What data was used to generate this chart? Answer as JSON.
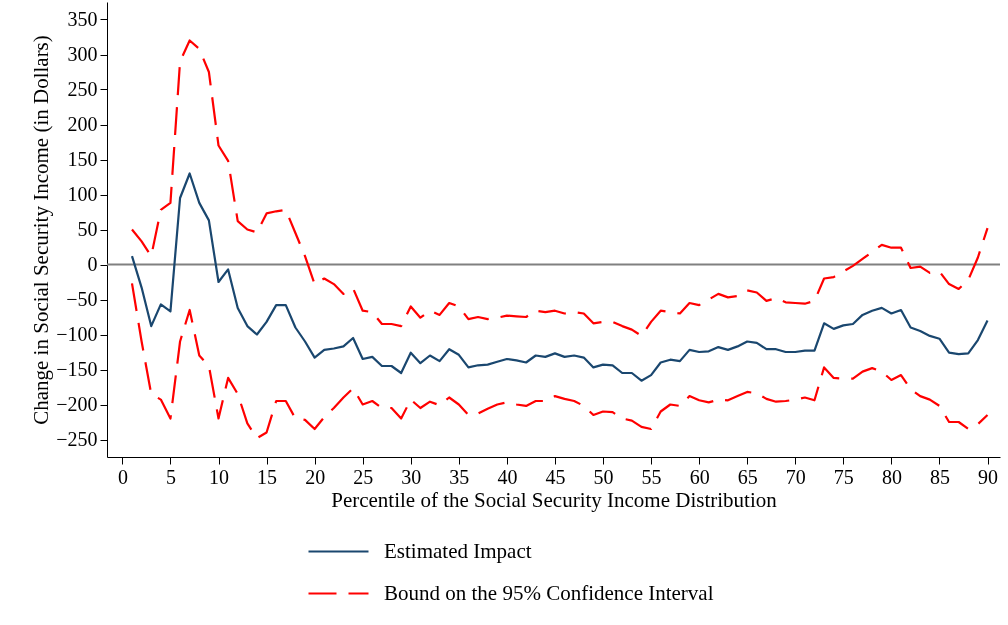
{
  "chart_data": {
    "type": "line",
    "xlabel": "Percentile of the Social Security Income Distribution",
    "ylabel": "Change in Social Security Income (in Dollars)",
    "x": [
      1,
      2,
      3,
      4,
      5,
      6,
      7,
      8,
      9,
      10,
      11,
      12,
      13,
      14,
      15,
      16,
      17,
      18,
      19,
      20,
      21,
      22,
      23,
      24,
      25,
      26,
      27,
      28,
      29,
      30,
      31,
      32,
      33,
      34,
      35,
      36,
      37,
      38,
      39,
      40,
      41,
      42,
      43,
      44,
      45,
      46,
      47,
      48,
      49,
      50,
      51,
      52,
      53,
      54,
      55,
      56,
      57,
      58,
      59,
      60,
      61,
      62,
      63,
      64,
      65,
      66,
      67,
      68,
      69,
      70,
      71,
      72,
      73,
      74,
      75,
      76,
      77,
      78,
      79,
      80,
      81,
      82,
      83,
      84,
      85,
      86,
      87,
      88,
      89,
      90
    ],
    "series": [
      {
        "name": "Estimated Impact",
        "color": "#1a476f",
        "line_style": "solid",
        "values": [
          12,
          -33,
          -88,
          -57,
          -67,
          95,
          130,
          88,
          63,
          -25,
          -7,
          -62,
          -88,
          -100,
          -82,
          -58,
          -58,
          -90,
          -110,
          -133,
          -122,
          -120,
          -117,
          -105,
          -135,
          -132,
          -145,
          -145,
          -155,
          -126,
          -141,
          -130,
          -138,
          -121,
          -129,
          -147,
          -144,
          -143,
          -139,
          -135,
          -137,
          -140,
          -130,
          -132,
          -127,
          -132,
          -130,
          -133,
          -147,
          -143,
          -144,
          -155,
          -155,
          -166,
          -158,
          -140,
          -136,
          -138,
          -122,
          -125,
          -124,
          -118,
          -122,
          -117,
          -110,
          -112,
          -121,
          -121,
          -125,
          -125,
          -123,
          -123,
          -84,
          -92,
          -87,
          -85,
          -72,
          -66,
          -62,
          -70,
          -65,
          -90,
          -95,
          -102,
          -106,
          -126,
          -128,
          -127,
          -108,
          -80
        ]
      },
      {
        "name": "Bound on the 95% Confidence Interval",
        "color": "#ff0000",
        "line_style": "dashed",
        "values": [
          50,
          33,
          12,
          78,
          88,
          290,
          320,
          308,
          275,
          170,
          148,
          62,
          50,
          46,
          73,
          76,
          78,
          45,
          12,
          -28,
          -20,
          -28,
          -42,
          -34,
          -66,
          -68,
          -85,
          -85,
          -88,
          -60,
          -76,
          -66,
          -72,
          -55,
          -60,
          -78,
          -75,
          -78,
          -76,
          -73,
          -74,
          -75,
          -66,
          -68,
          -66,
          -70,
          -68,
          -70,
          -84,
          -82,
          -82,
          -88,
          -93,
          -102,
          -82,
          -66,
          -68,
          -70,
          -55,
          -58,
          -50,
          -42,
          -47,
          -45,
          -37,
          -40,
          -52,
          -48,
          -54,
          -55,
          -56,
          -52,
          -20,
          -18,
          -10,
          -2,
          8,
          18,
          28,
          24,
          24,
          -5,
          -3,
          -12,
          -10,
          -28,
          -35,
          -22,
          10,
          52
        ]
      },
      {
        "color": "#ff0000",
        "line_style": "dashed",
        "values": [
          -27,
          -110,
          -185,
          -193,
          -220,
          -110,
          -65,
          -130,
          -145,
          -220,
          -162,
          -185,
          -227,
          -248,
          -240,
          -195,
          -195,
          -220,
          -222,
          -235,
          -218,
          -205,
          -190,
          -177,
          -200,
          -195,
          -205,
          -205,
          -220,
          -193,
          -205,
          -196,
          -201,
          -190,
          -200,
          -215,
          -213,
          -206,
          -200,
          -197,
          -200,
          -202,
          -195,
          -195,
          -188,
          -192,
          -195,
          -202,
          -215,
          -210,
          -211,
          -220,
          -223,
          -232,
          -235,
          -210,
          -200,
          -202,
          -188,
          -194,
          -197,
          -193,
          -194,
          -188,
          -182,
          -184,
          -192,
          -196,
          -195,
          -193,
          -190,
          -194,
          -147,
          -162,
          -163,
          -163,
          -153,
          -148,
          -153,
          -165,
          -158,
          -178,
          -188,
          -193,
          -202,
          -225,
          -225,
          -235,
          -228,
          -215
        ]
      }
    ],
    "xlim": [
      -1.6,
      91.3
    ],
    "xticks": [
      0,
      5,
      10,
      15,
      20,
      25,
      30,
      35,
      40,
      45,
      50,
      55,
      60,
      65,
      70,
      75,
      80,
      85,
      90
    ],
    "ylim": [
      -275,
      375
    ],
    "yticks": [
      -250,
      -200,
      -150,
      -100,
      -50,
      0,
      50,
      100,
      150,
      200,
      250,
      300,
      350
    ],
    "ref_lines": [
      {
        "axis": "y",
        "value": 0,
        "color": "#808080"
      }
    ],
    "grid": false,
    "legend": "bottom",
    "marker": "none"
  }
}
